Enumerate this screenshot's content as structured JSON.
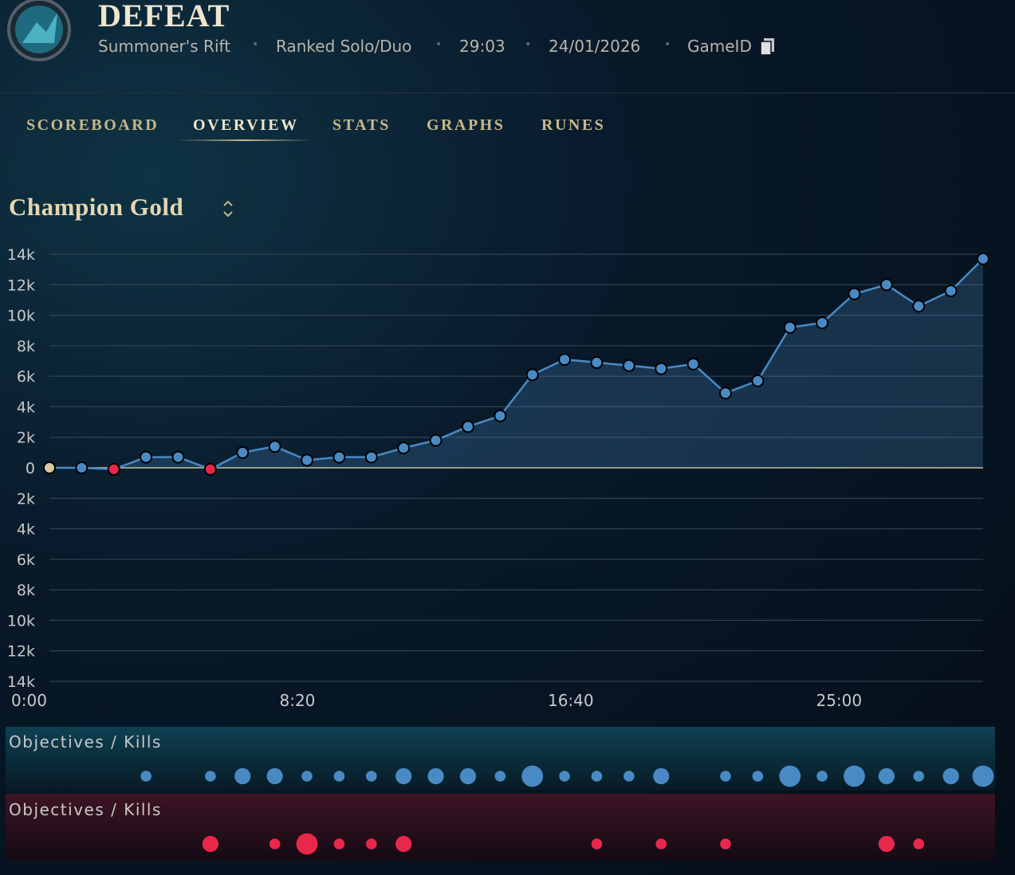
{
  "header": {
    "title": "DEFEAT",
    "meta": [
      "Summoner's Rift",
      "Ranked Solo/Duo",
      "29:03",
      "24/01/2026",
      "GameID"
    ]
  },
  "tabs": [
    "SCOREBOARD",
    "OVERVIEW",
    "STATS",
    "GRAPHS",
    "RUNES"
  ],
  "chart_data": {
    "type": "line",
    "title": "Champion Gold",
    "x": [
      0,
      60,
      120,
      180,
      240,
      300,
      360,
      420,
      480,
      540,
      600,
      660,
      720,
      780,
      840,
      900,
      960,
      1020,
      1080,
      1140,
      1200,
      1260,
      1320,
      1380,
      1440,
      1500,
      1560,
      1620,
      1680,
      1740
    ],
    "series": [
      {
        "name": "Champion Gold",
        "color": "#4a8ac4",
        "negative_color": "#e8284a",
        "start_color": "#d8c9a0",
        "values": [
          0,
          0,
          -100,
          700,
          700,
          -100,
          1000,
          1400,
          500,
          700,
          700,
          1300,
          1800,
          2700,
          3400,
          6100,
          7100,
          6900,
          6700,
          6500,
          6800,
          4900,
          5700,
          9200,
          9500,
          11400,
          12000,
          10600,
          11600,
          13700
        ]
      }
    ],
    "xlim": [
      0,
      1740
    ],
    "xticks": [
      {
        "value": 0,
        "label": "0:00"
      },
      {
        "value": 500,
        "label": "8:20"
      },
      {
        "value": 1000,
        "label": "16:40"
      },
      {
        "value": 1500,
        "label": "25:00"
      }
    ],
    "ylim": [
      -14000,
      14000
    ],
    "yticks": [
      {
        "value": 14000,
        "label": "14k"
      },
      {
        "value": 12000,
        "label": "12k"
      },
      {
        "value": 10000,
        "label": "10k"
      },
      {
        "value": 8000,
        "label": "8k"
      },
      {
        "value": 6000,
        "label": "6k"
      },
      {
        "value": 4000,
        "label": "4k"
      },
      {
        "value": 2000,
        "label": "2k"
      },
      0,
      {
        "value": -2000,
        "label": "2k"
      },
      {
        "value": -4000,
        "label": "4k"
      },
      {
        "value": -6000,
        "label": "6k"
      },
      {
        "value": -8000,
        "label": "8k"
      },
      {
        "value": -10000,
        "label": "10k"
      },
      {
        "value": -12000,
        "label": "12k"
      },
      {
        "value": -14000,
        "label": "14k"
      }
    ],
    "grid": true
  },
  "objectives": [
    {
      "label": "Objectives / Kills",
      "color": "#4a8ac4",
      "x": [
        180,
        300,
        360,
        420,
        480,
        540,
        600,
        660,
        720,
        780,
        840,
        900,
        960,
        1020,
        1080,
        1140,
        1260,
        1320,
        1380,
        1440,
        1500,
        1560,
        1620,
        1680,
        1740
      ],
      "sizes": [
        1,
        1,
        2,
        2,
        1,
        1,
        1,
        2,
        2,
        2,
        1,
        3,
        1,
        1,
        1,
        2,
        1,
        1,
        3,
        1,
        3,
        2,
        1,
        2,
        3
      ]
    },
    {
      "label": "Objectives / Kills",
      "color": "#e8284a",
      "x": [
        300,
        420,
        480,
        540,
        600,
        660,
        1020,
        1140,
        1260,
        1560,
        1620
      ],
      "sizes": [
        2,
        1,
        3,
        1,
        1,
        2,
        1,
        1,
        1,
        2,
        1
      ]
    }
  ]
}
